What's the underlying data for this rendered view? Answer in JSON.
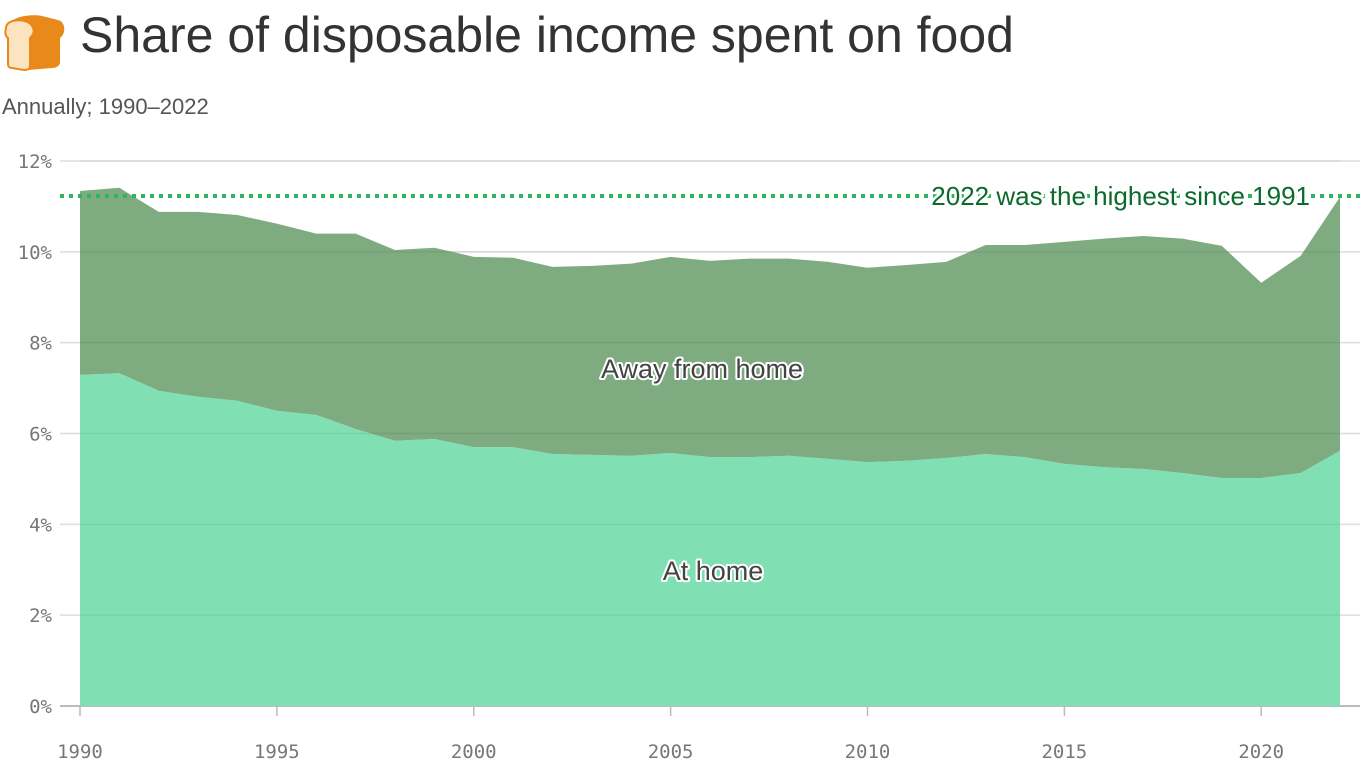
{
  "title": "Share of disposable income spent on food",
  "subtitle": "Annually; 1990–2022",
  "icon": "bread-emoji",
  "chart_data": {
    "type": "area",
    "stacked": true,
    "x": [
      1990,
      1991,
      1992,
      1993,
      1994,
      1995,
      1996,
      1997,
      1998,
      1999,
      2000,
      2001,
      2002,
      2003,
      2004,
      2005,
      2006,
      2007,
      2008,
      2009,
      2010,
      2011,
      2012,
      2013,
      2014,
      2015,
      2016,
      2017,
      2018,
      2019,
      2020,
      2021,
      2022
    ],
    "series": [
      {
        "name": "At home",
        "color": "#80e0b4",
        "values": [
          7.29,
          7.33,
          6.94,
          6.81,
          6.72,
          6.5,
          6.41,
          6.1,
          5.84,
          5.88,
          5.7,
          5.7,
          5.55,
          5.53,
          5.51,
          5.57,
          5.48,
          5.48,
          5.51,
          5.44,
          5.37,
          5.4,
          5.46,
          5.55,
          5.48,
          5.33,
          5.26,
          5.22,
          5.13,
          5.02,
          5.02,
          5.13,
          5.62
        ]
      },
      {
        "name": "Away from home",
        "color": "#7fab80",
        "values": [
          4.05,
          4.08,
          3.94,
          4.07,
          4.09,
          4.12,
          3.99,
          4.3,
          4.2,
          4.21,
          4.19,
          4.17,
          4.12,
          4.16,
          4.23,
          4.32,
          4.32,
          4.37,
          4.34,
          4.34,
          4.28,
          4.31,
          4.32,
          4.6,
          4.67,
          4.89,
          5.03,
          5.13,
          5.16,
          5.11,
          4.3,
          4.78,
          5.59
        ]
      }
    ],
    "ylim": [
      0,
      12
    ],
    "yticks": [
      "0%",
      "2%",
      "4%",
      "6%",
      "8%",
      "10%",
      "12%"
    ],
    "yticks_values": [
      0,
      2,
      4,
      6,
      8,
      10,
      12
    ],
    "xticks": [
      1990,
      1995,
      2000,
      2005,
      2010,
      2015,
      2020
    ],
    "grid": true,
    "reference_line": {
      "value": 11.23,
      "label": "2022 was the highest since 1991",
      "color": "#2db560",
      "style": "dotted"
    },
    "xlabel": "",
    "ylabel": ""
  }
}
